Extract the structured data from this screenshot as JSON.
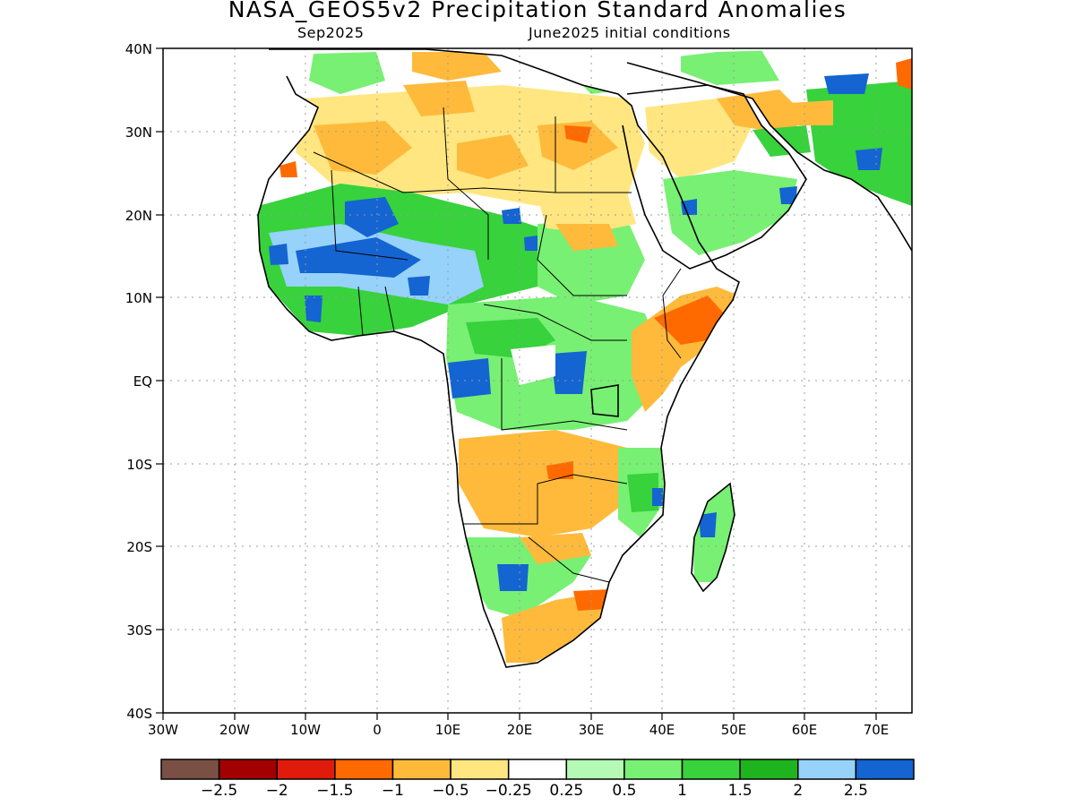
{
  "title": "NASA_GEOS5v2 Precipitation Standard Anomalies",
  "subtitle_left": "Sep2025",
  "subtitle_right": "June2025 initial conditions",
  "lat_labels": [
    "40N",
    "30N",
    "20N",
    "10N",
    "EQ",
    "10S",
    "20S",
    "30S",
    "40S"
  ],
  "lon_labels": [
    "30W",
    "20W",
    "10W",
    "0",
    "10E",
    "20E",
    "30E",
    "40E",
    "50E",
    "60E",
    "70E"
  ],
  "colorbar": {
    "colors": [
      "#7a5045",
      "#a30000",
      "#e01b0b",
      "#ff6a00",
      "#ffba3c",
      "#ffe680",
      "#ffffff",
      "#b4fab4",
      "#78f073",
      "#37d23c",
      "#1eb41e",
      "#96d2fa",
      "#1464d2"
    ],
    "labels": [
      "-2.5",
      "-2",
      "-1.5",
      "-1",
      "-0.5",
      "-0.25",
      "0.25",
      "0.5",
      "1",
      "1.5",
      "2",
      "2.5"
    ]
  }
}
